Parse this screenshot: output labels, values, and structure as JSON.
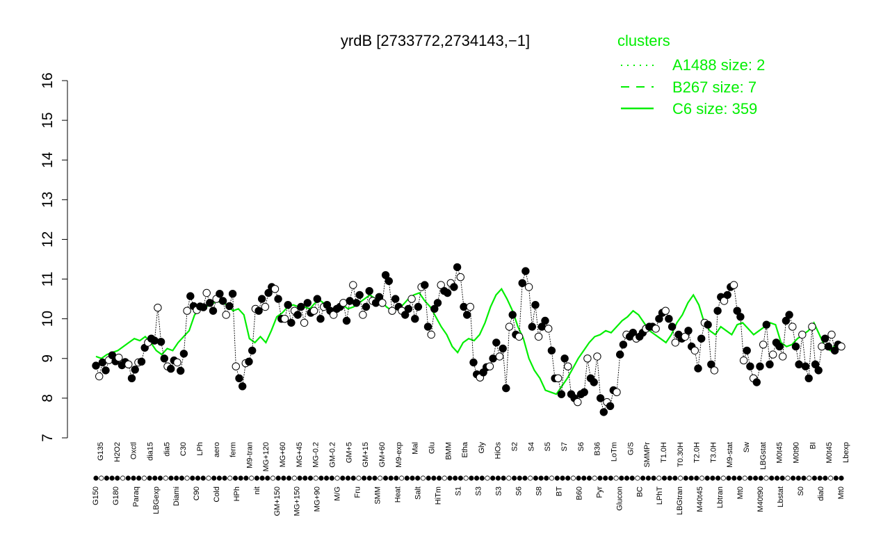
{
  "chart_data": {
    "type": "line",
    "title": "yrdB [2733772,2734143,−1]",
    "xlabel": "",
    "ylabel": "",
    "ylim": [
      7,
      16
    ],
    "yticks": [
      7,
      8,
      9,
      10,
      11,
      12,
      13,
      14,
      15,
      16
    ],
    "grid": false,
    "legend": {
      "title": "clusters",
      "position": "top-right",
      "items": [
        {
          "label": "A1488 size: 2",
          "style": "dotted"
        },
        {
          "label": "B267 size: 7",
          "style": "dashed"
        },
        {
          "label": "C6 size: 359",
          "style": "solid"
        }
      ]
    },
    "colors": {
      "cluster_line": "#00ee00",
      "axis": "#000000",
      "point_stroke": "#000000"
    },
    "tick_labels_top": [
      "G135",
      "H2O2",
      "Oxctl",
      "dia15",
      "dia5",
      "C30",
      "LPh",
      "aero",
      "ferm",
      "M9-tran",
      "MG+120",
      "MG+60",
      "MG+45",
      "MG-0.2",
      "GM-0.2",
      "GM+5",
      "GM+15",
      "GM+60",
      "M9-exp",
      "Mal",
      "Glu",
      "BMM",
      "Etha",
      "Gly",
      "HiOs",
      "S2",
      "S4",
      "S5",
      "S7",
      "S6",
      "B36",
      "LoTm",
      "G/S",
      "SMMPr",
      "T1.0H",
      "T0.30H",
      "T2.0H",
      "T3.0H",
      "M9-stat",
      "Sw",
      "LBGstat",
      "M0t45",
      "M0t90",
      "BI",
      "M0t45",
      "Lbexp"
    ],
    "tick_labels_bottom": [
      "G150",
      "G180",
      "Paraq",
      "LBGexp",
      "Diami",
      "C90",
      "Cold",
      "HPh",
      "nit",
      "GM+150",
      "MG+150",
      "MG+90",
      "M/G",
      "Fru",
      "SMM",
      "Heat",
      "Salt",
      "HiTm",
      "S1",
      "S3",
      "S3",
      "S6",
      "S8",
      "BT",
      "B60",
      "Pyr",
      "Glucon",
      "BC",
      "LPhT",
      "LBGtran",
      "M40t45",
      "Lbtran",
      "Mt0",
      "M40t90",
      "Lbstat",
      "S0",
      "dia0",
      "Mt0"
    ],
    "main_series": [
      8.82,
      8.55,
      8.9,
      8.7,
      8.96,
      9.08,
      8.93,
      9.02,
      8.83,
      8.91,
      8.85,
      8.5,
      8.72,
      8.9,
      8.92,
      9.27,
      9.4,
      9.5,
      9.45,
      10.28,
      9.42,
      9.0,
      8.8,
      8.74,
      8.95,
      8.9,
      8.69,
      9.12,
      10.2,
      10.57,
      10.32,
      10.22,
      10.31,
      10.29,
      10.65,
      10.4,
      10.2,
      10.5,
      10.63,
      10.45,
      10.1,
      10.32,
      10.63,
      8.8,
      8.5,
      8.3,
      8.88,
      8.92,
      9.2,
      10.25,
      10.2,
      10.5,
      10.3,
      10.65,
      10.8,
      10.75,
      10.5,
      10.0,
      10.0,
      10.35,
      9.9,
      10.2,
      10.1,
      10.3,
      9.9,
      10.4,
      10.15,
      10.2,
      10.5,
      10.0,
      10.3,
      10.35,
      10.2,
      10.1,
      10.25,
      10.3,
      10.4,
      9.95,
      10.45,
      10.85,
      10.4,
      10.6,
      10.1,
      10.3,
      10.7,
      10.45,
      10.4,
      10.55,
      10.4,
      11.1,
      10.95,
      10.2,
      10.5,
      10.3,
      10.2,
      10.1,
      10.25,
      10.5,
      10.0,
      10.3,
      10.8,
      10.85,
      9.8,
      9.6,
      10.25,
      10.4,
      10.85,
      10.7,
      10.65,
      10.9,
      10.8,
      11.3,
      11.05,
      10.3,
      10.1,
      10.3,
      8.9,
      8.6,
      8.52,
      8.65,
      8.78,
      8.8,
      9.0,
      9.4,
      9.05,
      9.25,
      8.25,
      9.8,
      10.1,
      9.6,
      9.55,
      10.9,
      11.2,
      10.8,
      9.8,
      10.35,
      9.55,
      9.8,
      9.95,
      9.75,
      9.2,
      8.5,
      8.5,
      8.1,
      9.0,
      8.8,
      8.1,
      8.0,
      7.9,
      8.1,
      8.15,
      9.0,
      8.5,
      8.4,
      9.05,
      8.0,
      7.65,
      7.9,
      7.8,
      8.2,
      8.15,
      9.1,
      9.35,
      9.6,
      9.55,
      9.65,
      9.5,
      9.55,
      9.65,
      9.75,
      9.8,
      9.8,
      9.75,
      10.0,
      10.15,
      10.2,
      10.0,
      9.8,
      9.4,
      9.6,
      9.5,
      9.55,
      9.7,
      9.3,
      9.2,
      8.75,
      9.5,
      9.9,
      9.85,
      8.85,
      8.7,
      10.2,
      10.55,
      10.45,
      10.6,
      10.8,
      10.85,
      10.2,
      10.05,
      8.95,
      9.2,
      8.8,
      8.5,
      8.4,
      8.8,
      9.35,
      9.85,
      8.85,
      9.1,
      9.4,
      9.3,
      9.05,
      9.95,
      10.1,
      9.8,
      9.3,
      8.85,
      9.6,
      8.8,
      8.5,
      9.8,
      8.85,
      8.7,
      9.3,
      9.5,
      9.3,
      9.6,
      9.2,
      9.35,
      9.3
    ],
    "cluster_series": [
      9.05,
      9.0,
      9.1,
      9.15,
      9.2,
      9.3,
      9.4,
      9.5,
      9.45,
      9.55,
      9.4,
      9.2,
      9.1,
      9.25,
      9.2,
      9.4,
      9.55,
      9.7,
      10.1,
      10.25,
      10.3,
      10.35,
      10.45,
      10.4,
      10.35,
      10.2,
      10.25,
      10.1,
      9.5,
      9.4,
      9.55,
      9.4,
      9.7,
      10.05,
      10.15,
      10.3,
      10.35,
      10.3,
      10.3,
      10.25,
      10.4,
      10.45,
      10.35,
      10.2,
      10.3,
      10.35,
      10.25,
      10.3,
      10.4,
      10.5,
      10.6,
      10.5,
      10.45,
      10.3,
      10.2,
      10.25,
      10.35,
      10.5,
      10.6,
      10.65,
      10.45,
      10.3,
      10.05,
      9.8,
      9.6,
      9.3,
      9.15,
      9.4,
      9.5,
      9.45,
      9.6,
      9.9,
      10.3,
      10.6,
      10.75,
      10.5,
      10.2,
      9.8,
      9.5,
      9.0,
      8.7,
      8.5,
      8.2,
      8.15,
      8.1,
      8.3,
      8.5,
      8.75,
      9.0,
      9.2,
      9.4,
      9.55,
      9.6,
      9.7,
      9.65,
      9.8,
      9.95,
      10.05,
      10.2,
      10.1,
      9.9,
      9.7,
      9.6,
      9.5,
      9.4,
      9.6,
      9.9,
      10.1,
      10.4,
      10.6,
      10.35,
      9.9,
      9.7,
      9.6,
      9.8,
      9.7,
      9.6,
      9.85,
      9.9,
      9.75,
      9.6,
      9.7,
      9.8,
      9.9,
      9.85,
      9.4,
      9.3,
      9.35,
      9.5,
      9.6,
      9.7,
      9.9,
      9.6,
      9.3,
      9.2,
      9.35,
      9.4
    ]
  }
}
